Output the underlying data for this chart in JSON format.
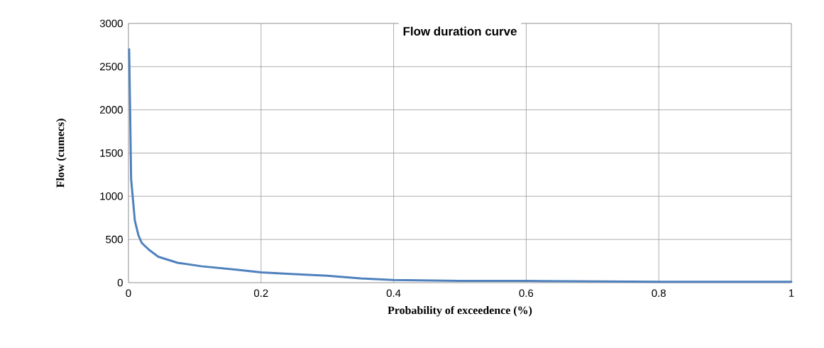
{
  "chart_data": {
    "type": "line",
    "title": "Flow duration curve",
    "xlabel": "Probability of exceedence (%)",
    "ylabel": "Flow (cumecs)",
    "x": [
      0.001,
      0.0025,
      0.004,
      0.0096,
      0.015,
      0.02,
      0.031,
      0.045,
      0.074,
      0.11,
      0.163,
      0.2,
      0.245,
      0.3,
      0.35,
      0.4,
      0.5,
      0.6,
      0.8,
      1
    ],
    "series": [
      {
        "color": "#4f81bd",
        "values": [
          2700,
          2000,
          1200,
          720,
          550,
          460,
          380,
          300,
          230,
          190,
          150,
          120,
          100,
          80,
          50,
          30,
          20,
          20,
          10,
          10
        ]
      }
    ],
    "xlim": [
      0,
      1
    ],
    "ylim": [
      0,
      3000
    ],
    "xticks": [
      0,
      0.2,
      0.4,
      0.6,
      0.8,
      1
    ],
    "yticks": [
      0,
      500,
      1000,
      1500,
      2000,
      2500,
      3000
    ],
    "grid": true,
    "marker": "none",
    "line_style": "solid"
  }
}
